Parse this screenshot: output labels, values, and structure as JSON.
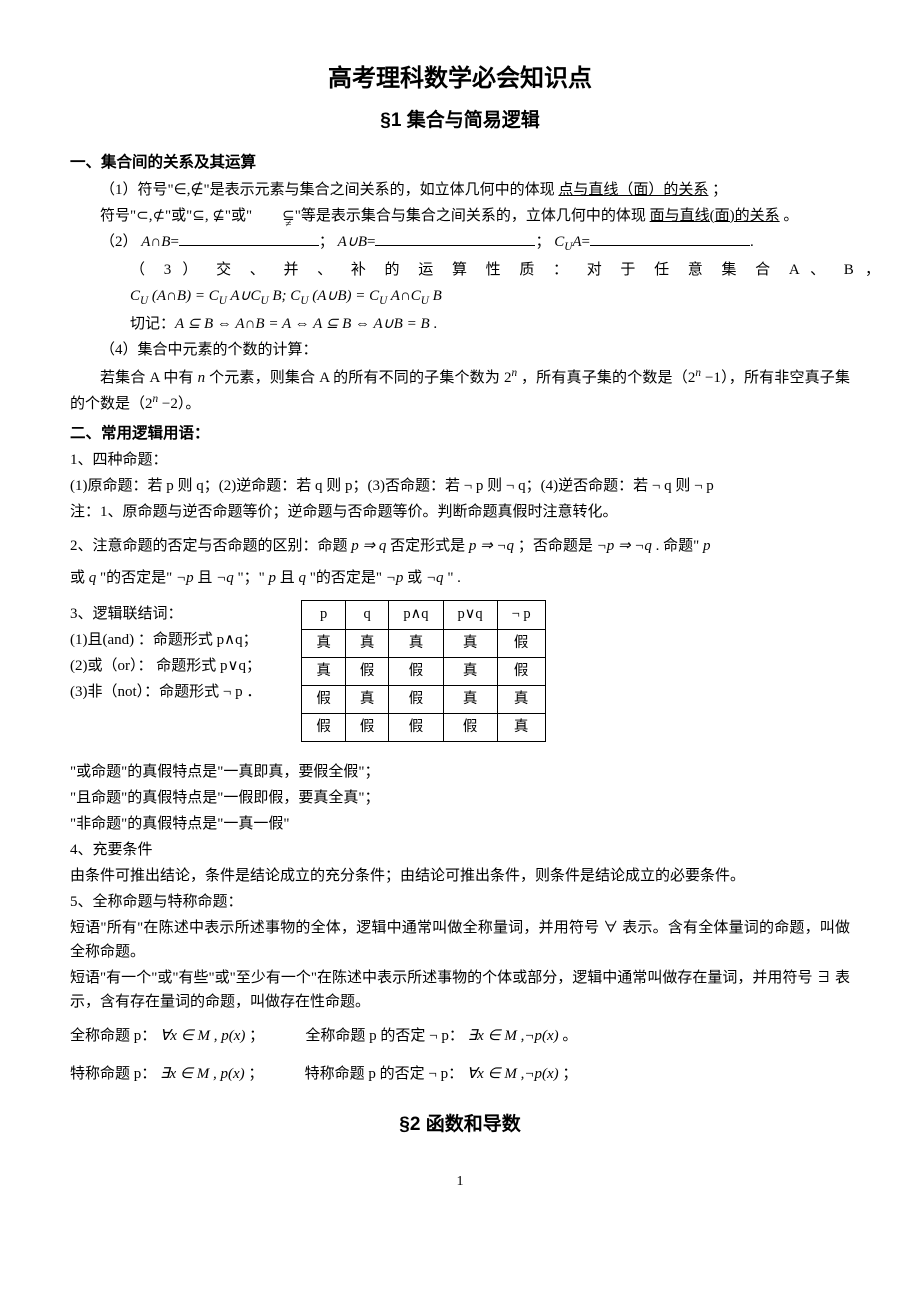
{
  "title_main": "高考理科数学必会知识点",
  "title_sub": "§1 集合与简易逻辑",
  "sec1_head": "一、集合间的关系及其运算",
  "p1_a": "（1）符号\"",
  "p1_sym1": "∈,∉",
  "p1_b": "\"是表示元素与集合之间关系的，如立体几何中的体现 ",
  "p1_u1": "点与直线（面）的关系",
  "p1_c": " ；",
  "p2_a": "符号\"",
  "p2_sym1": "⊂,⊄",
  "p2_b": "\"或\"",
  "p2_sym2": "⊆, ⊈",
  "p2_c": "\"或\"",
  "p2_sym3_top": "⊆",
  "p2_sym3_bot": "≠",
  "p2_d": "\"等是表示集合与集合之间关系的，立体几何中的体现 ",
  "p2_u1": "面与直线(面)的关系",
  "p2_e": " 。",
  "p3_a": "（2） ",
  "p3_m1": "A∩B",
  "p3_eq": "=",
  "p3_b": "；  ",
  "p3_m2": "A∪B",
  "p3_c": "； ",
  "p3_m3": "C",
  "p3_m3s": "U",
  "p3_m3a": "A",
  "p3_d": ".",
  "p4_a": "（ 3 ） 交 、 并 、 补 的 运 算 性 质 ： 对 于 任 意 集 合 A 、 B ，",
  "p4_m": "C_U (A∩B) = C_U A∪C_U B; C_U (A∪B) = C_U A∩C_U B",
  "p4b_a": "切记：",
  "p4b_m": "A ⊆ B ⇔ A∩B = A ⇔ A ⊆ B ⇔ A∪B = B",
  "p4b_dot": " .",
  "p5_a": "（4）集合中元素的个数的计算：",
  "p6_a": "若集合 A 中有 ",
  "p6_n": "n",
  "p6_b": " 个元素，则集合 A 的所有不同的子集个数为 ",
  "p6_m1": "2",
  "p6_m1s": "n",
  "p6_c": " ，所有真子集的个数是（",
  "p6_m2": "2",
  "p6_m2s": "n",
  "p6_m2t": " −1",
  "p6_d": "），所有非空真子集的个数是（",
  "p6_m3": "2",
  "p6_m3s": "n",
  "p6_m3t": " −2",
  "p6_e": "）。",
  "sec2_head": "二、常用逻辑用语：",
  "p7": "1、四种命题：",
  "p8": "(1)原命题：若 p 则 q；(2)逆命题：若 q 则 p；(3)否命题：若 ¬ p 则 ¬ q；(4)逆否命题：若 ¬ q 则 ¬ p",
  "p9": "注：1、原命题与逆否命题等价；逆命题与否命题等价。判断命题真假时注意转化。",
  "p10_a": "2、注意命题的否定与否命题的区别：命题 ",
  "p10_m1": "p ⇒ q",
  "p10_b": " 否定形式是 ",
  "p10_m2": "p ⇒ ¬q",
  "p10_c": " ；否命题是 ",
  "p10_m3": "¬p ⇒ ¬q",
  "p10_d": " . 命题\" ",
  "p10_m4": "p",
  "p11_a": "或 ",
  "p11_m1": "q",
  "p11_b": " \"的否定是\" ",
  "p11_m2": "¬p",
  "p11_c": " 且 ",
  "p11_m3": "¬q",
  "p11_d": " \"；\" ",
  "p11_m4": "p",
  "p11_e": " 且 ",
  "p11_m5": "q",
  "p11_f": " \"的否定是\" ",
  "p11_m6": "¬p",
  "p11_g": " 或 ",
  "p11_m7": "¬q",
  "p11_h": " \" .",
  "p12": "3、逻辑联结词：",
  "p13": "(1)且(and) ：命题形式 p∧q；",
  "p14": "(2)或（or）： 命题形式 p∨q；",
  "p15": "(3)非（not）：命题形式 ¬ p ．",
  "truth_table": {
    "columns": [
      "p",
      "q",
      "p∧q",
      "p∨q",
      "¬ p"
    ],
    "rows": [
      [
        "真",
        "真",
        "真",
        "真",
        "假"
      ],
      [
        "真",
        "假",
        "假",
        "真",
        "假"
      ],
      [
        "假",
        "真",
        "假",
        "真",
        "真"
      ],
      [
        "假",
        "假",
        "假",
        "假",
        "真"
      ]
    ]
  },
  "p16": "\"或命题\"的真假特点是\"一真即真，要假全假\"；",
  "p17": "\"且命题\"的真假特点是\"一假即假，要真全真\"；",
  "p18": "\"非命题\"的真假特点是\"一真一假\"",
  "p19": "4、充要条件",
  "p20": "由条件可推出结论，条件是结论成立的充分条件；由结论可推出条件，则条件是结论成立的必要条件。",
  "p21": "5、全称命题与特称命题：",
  "p22": "短语\"所有\"在陈述中表示所述事物的全体，逻辑中通常叫做全称量词，并用符号 ∀ 表示。含有全体量词的命题，叫做全称命题。",
  "p23": "短语\"有一个\"或\"有些\"或\"至少有一个\"在陈述中表示所述事物的个体或部分，逻辑中通常叫做存在量词，并用符号 ∃ 表示，含有存在量词的命题，叫做存在性命题。",
  "p24_a": "全称命题 p： ",
  "p24_m1": "∀x ∈ M , p(x)",
  "p24_b": " ；           全称命题 p 的否定 ¬ p： ",
  "p24_m2": "∃x ∈ M ,¬p(x)",
  "p24_c": " 。",
  "p25_a": "特称命题 p： ",
  "p25_m1": "∃x ∈ M , p(x)",
  "p25_b": " ；           特称命题 p 的否定 ¬ p： ",
  "p25_m2": "∀x ∈ M ,¬p(x)",
  "p25_c": " ；",
  "title_sec2": "§2 函数和导数",
  "page_num": "1"
}
